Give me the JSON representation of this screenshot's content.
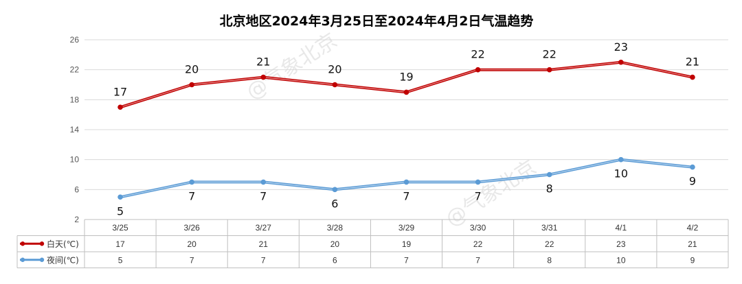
{
  "chart_data": {
    "type": "line",
    "title": "北京地区2024年3月25日至2024年4月2日气温趋势",
    "categories": [
      "3/25",
      "3/26",
      "3/27",
      "3/28",
      "3/29",
      "3/30",
      "3/31",
      "4/1",
      "4/2"
    ],
    "y_ticks": [
      2,
      6,
      10,
      14,
      18,
      22,
      26
    ],
    "ylim": [
      2,
      26
    ],
    "grid": "horizontal",
    "data_table": true,
    "series": [
      {
        "name": "白天(℃)",
        "values": [
          17,
          20,
          21,
          20,
          19,
          22,
          22,
          23,
          21
        ],
        "color": "#c00000"
      },
      {
        "name": "夜间(℃)",
        "values": [
          5,
          7,
          7,
          6,
          7,
          7,
          8,
          10,
          9
        ],
        "color": "#5b9bd5"
      }
    ]
  },
  "watermark": {
    "text": "@气象北京"
  }
}
